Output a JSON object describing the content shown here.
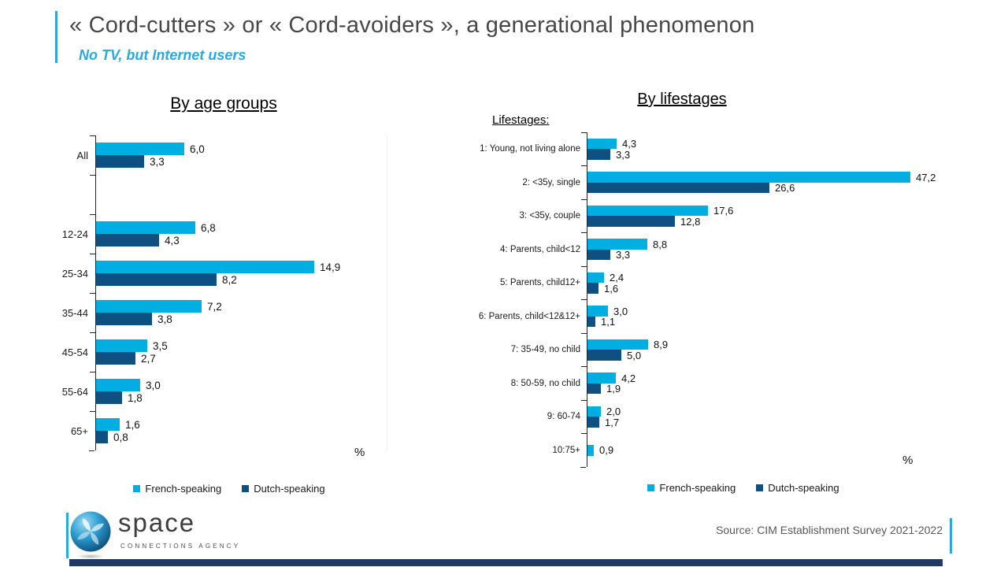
{
  "header": {
    "title": "« Cord-cutters » or « Cord-avoiders », a generational phenomenon",
    "subtitle": "No TV, but Internet users"
  },
  "colors": {
    "french_speaking": "#00AEE2",
    "dutch_speaking": "#0E5082",
    "accent": "#2BA9DF",
    "bottom_bar": "#1F3864",
    "axis": "#262626"
  },
  "chart_data": [
    {
      "type": "bar",
      "orientation": "horizontal",
      "title": "By age groups",
      "xlabel": "%",
      "xlim": [
        0,
        18.8
      ],
      "grid": false,
      "legend_position": "bottom",
      "categories": [
        "All",
        "12-24",
        "25-34",
        "35-44",
        "45-54",
        "55-64",
        "65+"
      ],
      "series": [
        {
          "name": "French-speaking",
          "color": "#00AEE2",
          "values": [
            6.0,
            6.8,
            14.9,
            7.2,
            3.5,
            3.0,
            1.6
          ]
        },
        {
          "name": "Dutch-speaking",
          "color": "#0E5082",
          "values": [
            3.3,
            4.3,
            8.2,
            3.8,
            2.7,
            1.8,
            0.8
          ]
        }
      ],
      "value_labels": [
        [
          "6,0",
          "6,8",
          "14,9",
          "7,2",
          "3,5",
          "3,0",
          "1,6"
        ],
        [
          "3,3",
          "4,3",
          "8,2",
          "3,8",
          "2,7",
          "1,8",
          "0,8"
        ]
      ]
    },
    {
      "type": "bar",
      "orientation": "horizontal",
      "title": "By lifestages",
      "axis_label": "Lifestages:",
      "xlabel": "%",
      "xlim": [
        0,
        50.6
      ],
      "grid": false,
      "legend_position": "bottom",
      "categories": [
        "1: Young, not living alone",
        "2: <35y, single",
        "3: <35y, couple",
        "4: Parents, child<12",
        "5: Parents, child12+",
        "6: Parents, child<12&12+",
        "7: 35-49, no child",
        "8: 50-59, no child",
        "9: 60-74",
        "10:75+"
      ],
      "series": [
        {
          "name": "French-speaking",
          "color": "#00AEE2",
          "values": [
            4.3,
            47.2,
            17.6,
            8.8,
            2.4,
            3.0,
            8.9,
            4.2,
            2.0,
            0.9
          ]
        },
        {
          "name": "Dutch-speaking",
          "color": "#0E5082",
          "values": [
            3.3,
            26.6,
            12.8,
            3.3,
            1.6,
            1.1,
            5.0,
            1.9,
            1.7,
            null
          ]
        }
      ],
      "value_labels": [
        [
          "4,3",
          "47,2",
          "17,6",
          "8,8",
          "2,4",
          "3,0",
          "8,9",
          "4,2",
          "2,0",
          "0,9"
        ],
        [
          "3,3",
          "26,6",
          "12,8",
          "3,3",
          "1,6",
          "1,1",
          "5,0",
          "1,9",
          "1,7",
          null
        ]
      ]
    }
  ],
  "footer": {
    "logo_text": "space",
    "logo_subtext": "CONNECTIONS AGENCY",
    "source": "Source: CIM Establishment Survey 2021-2022"
  }
}
